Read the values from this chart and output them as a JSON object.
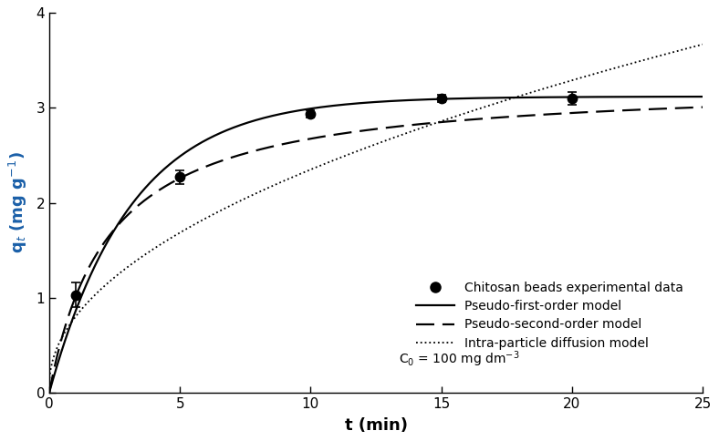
{
  "exp_t": [
    1,
    5,
    10,
    15,
    20
  ],
  "exp_q": [
    1.03,
    2.27,
    2.94,
    3.1,
    3.1
  ],
  "exp_yerr": [
    0.13,
    0.07,
    0.04,
    0.04,
    0.07
  ],
  "xlim": [
    0,
    25
  ],
  "ylim": [
    0,
    4
  ],
  "xticks": [
    0,
    5,
    10,
    15,
    20,
    25
  ],
  "yticks": [
    0,
    1,
    2,
    3,
    4
  ],
  "xlabel": "t (min)",
  "ylabel": "q$_{t}$ (mg g$^{-1}$)",
  "legend_labels": [
    "Chitosan beads experimental data",
    "Pseudo-first-order model",
    "Pseudo-second-order model",
    "Intra-particle diffusion model",
    "C$_0$ = 100 mg dm$^{-3}$"
  ],
  "pfo_qe": 3.12,
  "pfo_k1": 0.32,
  "pso_qe": 3.28,
  "pso_k2": 0.135,
  "ipd_ki": 0.718,
  "ipd_C": 0.08,
  "ylabel_color": "#1a5fa8",
  "line_color": "#000000",
  "marker_color": "#000000",
  "background_color": "#ffffff"
}
